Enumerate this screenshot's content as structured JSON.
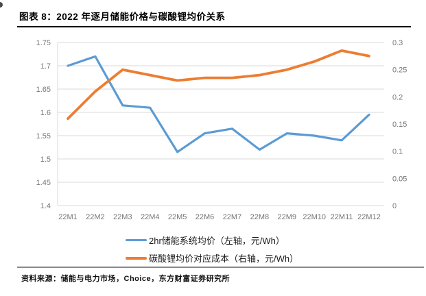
{
  "page": {
    "source": "资料来源：储能与电力市场，Choice，东方财富证券研究所"
  },
  "chart_data": {
    "type": "line",
    "title": "图表 8：2022 年逐月储能价格与碳酸锂均价关系",
    "categories": [
      "22M1",
      "22M2",
      "22M3",
      "22M4",
      "22M5",
      "22M6",
      "22M7",
      "22M8",
      "22M9",
      "22M10",
      "22M11",
      "22M12"
    ],
    "series": [
      {
        "name": "2hr储能系统均价（左轴，元/Wh）",
        "axis": "left",
        "color": "#5B9BD5",
        "values": [
          1.7,
          1.72,
          1.615,
          1.61,
          1.515,
          1.555,
          1.565,
          1.52,
          1.555,
          1.55,
          1.54,
          1.595
        ]
      },
      {
        "name": "碳酸锂均价对应成本（右轴，元/Wh）",
        "axis": "right",
        "color": "#ED7D31",
        "values": [
          0.16,
          0.21,
          0.25,
          0.24,
          0.23,
          0.235,
          0.235,
          0.24,
          0.25,
          0.265,
          0.285,
          0.275
        ]
      }
    ],
    "left_axis": {
      "min": 1.4,
      "max": 1.75,
      "tick_labels": [
        "1.75",
        "1.7",
        "1.65",
        "1.6",
        "1.55",
        "1.5",
        "1.45",
        "1.4"
      ]
    },
    "right_axis": {
      "min": 0,
      "max": 0.3,
      "tick_labels": [
        "0.3",
        "0.25",
        "0.2",
        "0.15",
        "0.1",
        "0.05",
        "0"
      ]
    },
    "grid": true,
    "legend_position": "bottom",
    "colors": {
      "gridline": "#D9D9D9",
      "tick_text": "#757575",
      "series_blue": "#5B9BD5",
      "series_orange": "#ED7D31"
    }
  }
}
